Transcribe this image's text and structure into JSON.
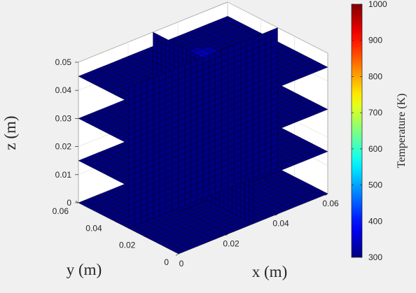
{
  "chart_data": {
    "type": "heatmap",
    "subtype": "3d-slice",
    "title": "",
    "xlabel": "x (m)",
    "ylabel": "y (m)",
    "zlabel": "z (m)",
    "xlim": [
      0,
      0.06
    ],
    "ylim": [
      0,
      0.06
    ],
    "zlim": [
      0,
      0.05
    ],
    "x_ticks": [
      "0",
      "0.02",
      "0.04",
      "0.06"
    ],
    "y_ticks": [
      "0",
      "0.02",
      "0.04",
      "0.06"
    ],
    "z_ticks": [
      "0",
      "0.01",
      "0.02",
      "0.03",
      "0.04",
      "0.05"
    ],
    "grid": true,
    "slices": [
      {
        "plane": "z",
        "value": 0,
        "temperature": 300
      },
      {
        "plane": "z",
        "value": 0.015,
        "temperature": 300
      },
      {
        "plane": "z",
        "value": 0.03,
        "temperature": 300
      },
      {
        "plane": "z",
        "value": 0.045,
        "temperature": 300,
        "hotspot": {
          "x": 0.035,
          "y": 0.04,
          "temperature": 360
        }
      },
      {
        "plane": "x",
        "value": 0.03,
        "temperature": 300
      },
      {
        "plane": "y",
        "value": 0.03,
        "temperature": 300
      }
    ],
    "colorbar": {
      "label": "Temperature (K)",
      "colormap": "jet",
      "range": [
        300,
        1000
      ],
      "ticks": [
        "300",
        "400",
        "500",
        "600",
        "700",
        "800",
        "900",
        "1000"
      ]
    },
    "colors": {
      "slice_fill": "#0a1b9a",
      "hotspot_fill": "#2f4bd8",
      "mesh_edge": "#000000"
    }
  }
}
